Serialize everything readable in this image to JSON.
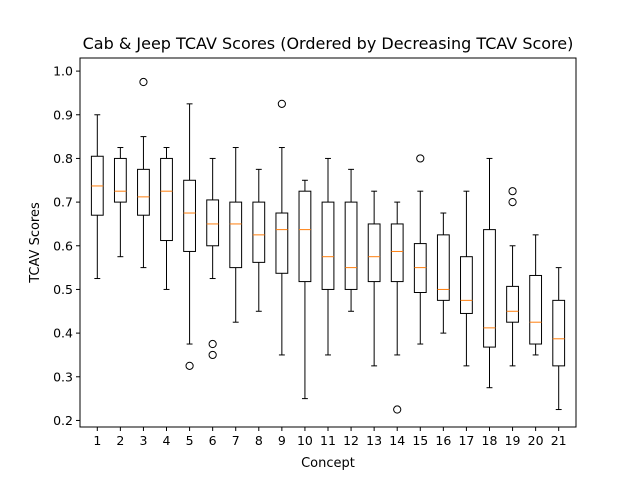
{
  "chart_data": {
    "type": "box",
    "title": "Cab & Jeep TCAV Scores (Ordered by Decreasing TCAV Score)",
    "xlabel": "Concept",
    "ylabel": "TCAV Scores",
    "ylim": [
      0.185,
      1.03
    ],
    "yticks": [
      0.2,
      0.3,
      0.4,
      0.5,
      0.6,
      0.7,
      0.8,
      0.9,
      1.0
    ],
    "ytick_labels": [
      "0.2",
      "0.3",
      "0.4",
      "0.5",
      "0.6",
      "0.7",
      "0.8",
      "0.9",
      "1.0"
    ],
    "categories": [
      "1",
      "2",
      "3",
      "4",
      "5",
      "6",
      "7",
      "8",
      "9",
      "10",
      "11",
      "12",
      "13",
      "14",
      "15",
      "16",
      "17",
      "18",
      "19",
      "20",
      "21"
    ],
    "grid": false,
    "colors": {
      "box": "#000000",
      "median": "#ff7f0e",
      "whisker": "#000000"
    },
    "boxes": [
      {
        "whislo": 0.525,
        "q1": 0.67,
        "med": 0.737,
        "q3": 0.805,
        "whishi": 0.9,
        "fliers": []
      },
      {
        "whislo": 0.575,
        "q1": 0.7,
        "med": 0.725,
        "q3": 0.8,
        "whishi": 0.825,
        "fliers": []
      },
      {
        "whislo": 0.55,
        "q1": 0.67,
        "med": 0.712,
        "q3": 0.775,
        "whishi": 0.85,
        "fliers": [
          0.975
        ]
      },
      {
        "whislo": 0.5,
        "q1": 0.612,
        "med": 0.725,
        "q3": 0.8,
        "whishi": 0.825,
        "fliers": []
      },
      {
        "whislo": 0.375,
        "q1": 0.587,
        "med": 0.675,
        "q3": 0.75,
        "whishi": 0.925,
        "fliers": [
          0.325
        ]
      },
      {
        "whislo": 0.525,
        "q1": 0.6,
        "med": 0.65,
        "q3": 0.705,
        "whishi": 0.8,
        "fliers": [
          0.375,
          0.35
        ]
      },
      {
        "whislo": 0.425,
        "q1": 0.55,
        "med": 0.65,
        "q3": 0.7,
        "whishi": 0.825,
        "fliers": []
      },
      {
        "whislo": 0.45,
        "q1": 0.562,
        "med": 0.625,
        "q3": 0.7,
        "whishi": 0.775,
        "fliers": []
      },
      {
        "whislo": 0.35,
        "q1": 0.537,
        "med": 0.637,
        "q3": 0.675,
        "whishi": 0.825,
        "fliers": [
          0.925
        ]
      },
      {
        "whislo": 0.25,
        "q1": 0.518,
        "med": 0.637,
        "q3": 0.725,
        "whishi": 0.75,
        "fliers": []
      },
      {
        "whislo": 0.35,
        "q1": 0.5,
        "med": 0.575,
        "q3": 0.7,
        "whishi": 0.8,
        "fliers": []
      },
      {
        "whislo": 0.45,
        "q1": 0.5,
        "med": 0.55,
        "q3": 0.7,
        "whishi": 0.775,
        "fliers": []
      },
      {
        "whislo": 0.325,
        "q1": 0.518,
        "med": 0.575,
        "q3": 0.65,
        "whishi": 0.725,
        "fliers": []
      },
      {
        "whislo": 0.35,
        "q1": 0.518,
        "med": 0.587,
        "q3": 0.65,
        "whishi": 0.7,
        "fliers": [
          0.225
        ]
      },
      {
        "whislo": 0.375,
        "q1": 0.493,
        "med": 0.55,
        "q3": 0.605,
        "whishi": 0.725,
        "fliers": [
          0.8
        ]
      },
      {
        "whislo": 0.4,
        "q1": 0.475,
        "med": 0.5,
        "q3": 0.625,
        "whishi": 0.675,
        "fliers": []
      },
      {
        "whislo": 0.325,
        "q1": 0.445,
        "med": 0.475,
        "q3": 0.575,
        "whishi": 0.725,
        "fliers": []
      },
      {
        "whislo": 0.275,
        "q1": 0.368,
        "med": 0.412,
        "q3": 0.637,
        "whishi": 0.8,
        "fliers": []
      },
      {
        "whislo": 0.325,
        "q1": 0.425,
        "med": 0.45,
        "q3": 0.507,
        "whishi": 0.6,
        "fliers": [
          0.725,
          0.7
        ]
      },
      {
        "whislo": 0.35,
        "q1": 0.375,
        "med": 0.425,
        "q3": 0.532,
        "whishi": 0.625,
        "fliers": []
      },
      {
        "whislo": 0.225,
        "q1": 0.325,
        "med": 0.387,
        "q3": 0.475,
        "whishi": 0.55,
        "fliers": []
      }
    ]
  }
}
